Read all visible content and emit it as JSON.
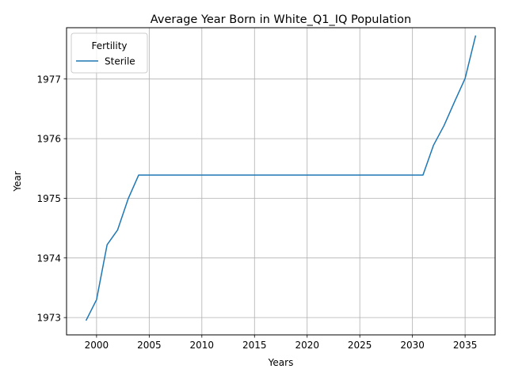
{
  "chart_data": {
    "type": "line",
    "title": "Average Year Born in White_Q1_IQ Population",
    "xlabel": "Years",
    "ylabel": "Year",
    "xlim": [
      1997.15,
      2037.85
    ],
    "ylim": [
      1972.71,
      1977.86
    ],
    "xticks": [
      2000,
      2005,
      2010,
      2015,
      2020,
      2025,
      2030,
      2035
    ],
    "xtick_labels": [
      "2000",
      "2005",
      "2010",
      "2015",
      "2020",
      "2025",
      "2030",
      "2035"
    ],
    "yticks": [
      1973,
      1974,
      1975,
      1976,
      1977
    ],
    "ytick_labels": [
      "1973",
      "1974",
      "1975",
      "1976",
      "1977"
    ],
    "grid": true,
    "legend": {
      "title": "Fertility",
      "placement": "top-left"
    },
    "series": [
      {
        "name": "Sterile",
        "color": "#1f77b4",
        "x": [
          1999,
          2000,
          2001,
          2002,
          2003,
          2004,
          2005,
          2006,
          2007,
          2008,
          2009,
          2010,
          2011,
          2012,
          2013,
          2014,
          2015,
          2016,
          2017,
          2018,
          2019,
          2020,
          2021,
          2022,
          2023,
          2024,
          2025,
          2026,
          2027,
          2028,
          2029,
          2030,
          2031,
          2032,
          2033,
          2034,
          2035,
          2036
        ],
        "y": [
          1972.95,
          1973.3,
          1974.22,
          1974.47,
          1974.99,
          1975.39,
          1975.39,
          1975.39,
          1975.39,
          1975.39,
          1975.39,
          1975.39,
          1975.39,
          1975.39,
          1975.39,
          1975.39,
          1975.39,
          1975.39,
          1975.39,
          1975.39,
          1975.39,
          1975.39,
          1975.39,
          1975.39,
          1975.39,
          1975.39,
          1975.39,
          1975.39,
          1975.39,
          1975.39,
          1975.39,
          1975.39,
          1975.39,
          1975.89,
          1976.22,
          1976.62,
          1977.01,
          1977.73
        ]
      }
    ]
  }
}
